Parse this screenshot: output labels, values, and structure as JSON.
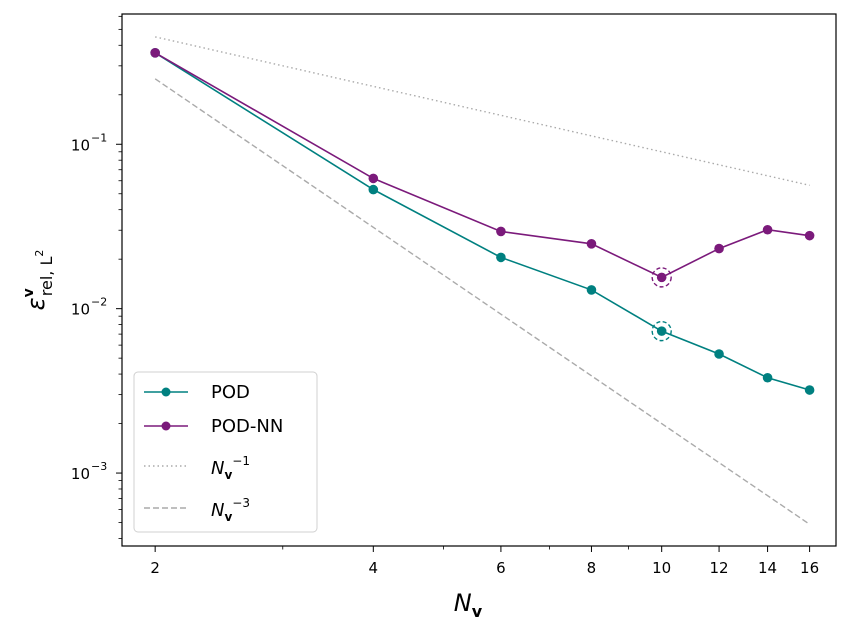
{
  "chart_data": {
    "type": "line",
    "x_scale": "log",
    "y_scale": "log",
    "xlim": [
      1.8,
      17.4
    ],
    "ylim": [
      0.00036,
      0.62
    ],
    "x_ticks": [
      2,
      4,
      6,
      8,
      10,
      12,
      14,
      16
    ],
    "x_tick_labels": [
      "2",
      "4",
      "6",
      "8",
      "10",
      "12",
      "14",
      "16"
    ],
    "y_ticks": [
      0.001,
      0.01,
      0.1
    ],
    "y_tick_labels": [
      {
        "base": "10",
        "exp": "−3"
      },
      {
        "base": "10",
        "exp": "−2"
      },
      {
        "base": "10",
        "exp": "−1"
      }
    ],
    "xlabel": {
      "main": "N",
      "sub": "v"
    },
    "ylabel": {
      "main": "ε",
      "sup": "v",
      "sub": "rel, L",
      "sub_sup": "2"
    },
    "grid": false,
    "legend_position": "lower-left",
    "series": [
      {
        "name": "POD",
        "color": "#008080",
        "style": "solid",
        "marker": "circle",
        "x": [
          2,
          4,
          6,
          8,
          10,
          12,
          14,
          16
        ],
        "y": [
          0.36,
          0.053,
          0.0205,
          0.013,
          0.0073,
          0.0053,
          0.0038,
          0.0032
        ],
        "highlight_x": 10
      },
      {
        "name": "POD-NN",
        "color": "#7b1a7b",
        "style": "solid",
        "marker": "circle",
        "x": [
          2,
          4,
          6,
          8,
          10,
          12,
          14,
          16
        ],
        "y": [
          0.36,
          0.062,
          0.0295,
          0.0248,
          0.0155,
          0.0232,
          0.0302,
          0.0278
        ],
        "highlight_x": 10
      },
      {
        "name_main": "N",
        "name_sub": "v",
        "name_sup": "−1",
        "color": "#aaaaaa",
        "style": "dotted",
        "marker": "none",
        "x": [
          2,
          16
        ],
        "y": [
          0.45,
          0.05625
        ]
      },
      {
        "name_main": "N",
        "name_sub": "v",
        "name_sup": "−3",
        "color": "#aaaaaa",
        "style": "dashed",
        "marker": "none",
        "x": [
          2,
          16
        ],
        "y": [
          0.25,
          0.000488
        ]
      }
    ]
  }
}
